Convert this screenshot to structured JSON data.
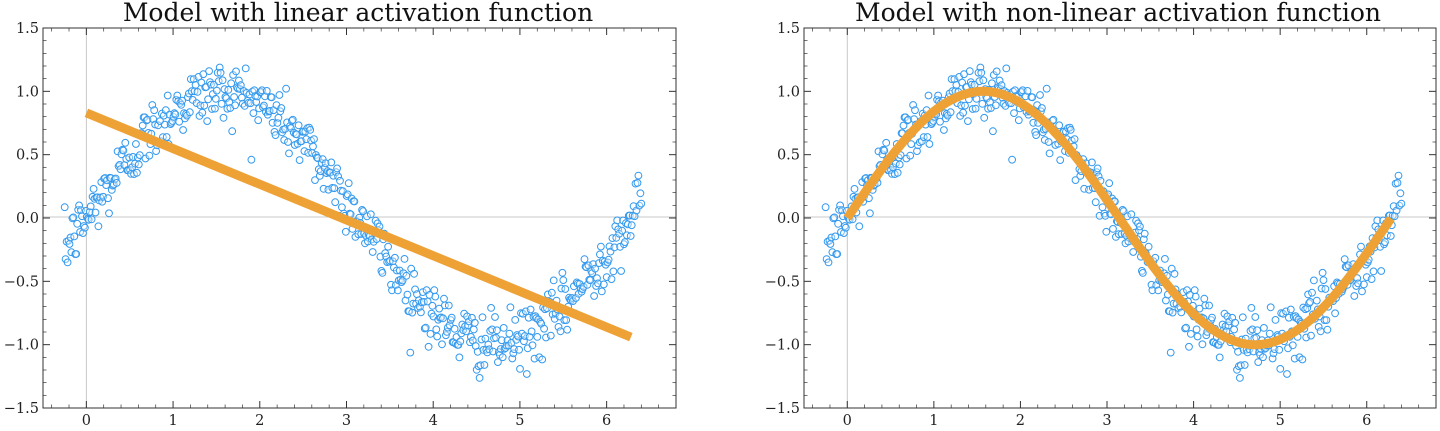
{
  "chart_data": [
    {
      "type": "scatter+line",
      "title": "Model with linear activation function",
      "xlabel": "",
      "ylabel": "",
      "xlim": [
        -0.5,
        6.8
      ],
      "ylim": [
        -1.5,
        1.5
      ],
      "x_ticks": [
        0,
        1,
        2,
        3,
        4,
        5,
        6
      ],
      "y_ticks": [
        -1.5,
        -1.0,
        -0.5,
        0.0,
        0.5,
        1.0,
        1.5
      ],
      "x_tick_labels": [
        "0",
        "1",
        "2",
        "3",
        "4",
        "5",
        "6"
      ],
      "y_tick_labels": [
        "−1.5",
        "−1.0",
        "−0.5",
        "0.0",
        "0.5",
        "1.0",
        "1.5"
      ],
      "grid": false,
      "zero_lines": true,
      "scatter": {
        "description": "noisy samples of y = sin(x) for x in [-0.25, 6.4], noise about ±0.12",
        "x_range": [
          -0.25,
          6.4
        ],
        "function": "sin",
        "noise": 0.12,
        "count": 600,
        "color": "#3399ee"
      },
      "fit_line": {
        "kind": "linear",
        "x": [
          0,
          6.28
        ],
        "y": [
          0.83,
          -0.94
        ],
        "color": "#eea236"
      }
    },
    {
      "type": "scatter+line",
      "title": "Model with non-linear activation function",
      "xlabel": "",
      "ylabel": "",
      "xlim": [
        -0.5,
        6.8
      ],
      "ylim": [
        -1.5,
        1.5
      ],
      "x_ticks": [
        0,
        1,
        2,
        3,
        4,
        5,
        6
      ],
      "y_ticks": [
        -1.5,
        -1.0,
        -0.5,
        0.0,
        0.5,
        1.0,
        1.5
      ],
      "x_tick_labels": [
        "0",
        "1",
        "2",
        "3",
        "4",
        "5",
        "6"
      ],
      "y_tick_labels": [
        "−1.5",
        "−1.0",
        "−0.5",
        "0.0",
        "0.5",
        "1.0",
        "1.5"
      ],
      "grid": false,
      "zero_lines": true,
      "scatter": {
        "description": "noisy samples of y = sin(x) for x in [-0.25, 6.4], noise about ±0.12",
        "x_range": [
          -0.25,
          6.4
        ],
        "function": "sin",
        "noise": 0.12,
        "count": 600,
        "color": "#3399ee"
      },
      "fit_line": {
        "kind": "sin",
        "x_range": [
          0,
          6.28
        ],
        "color": "#eea236"
      }
    }
  ]
}
